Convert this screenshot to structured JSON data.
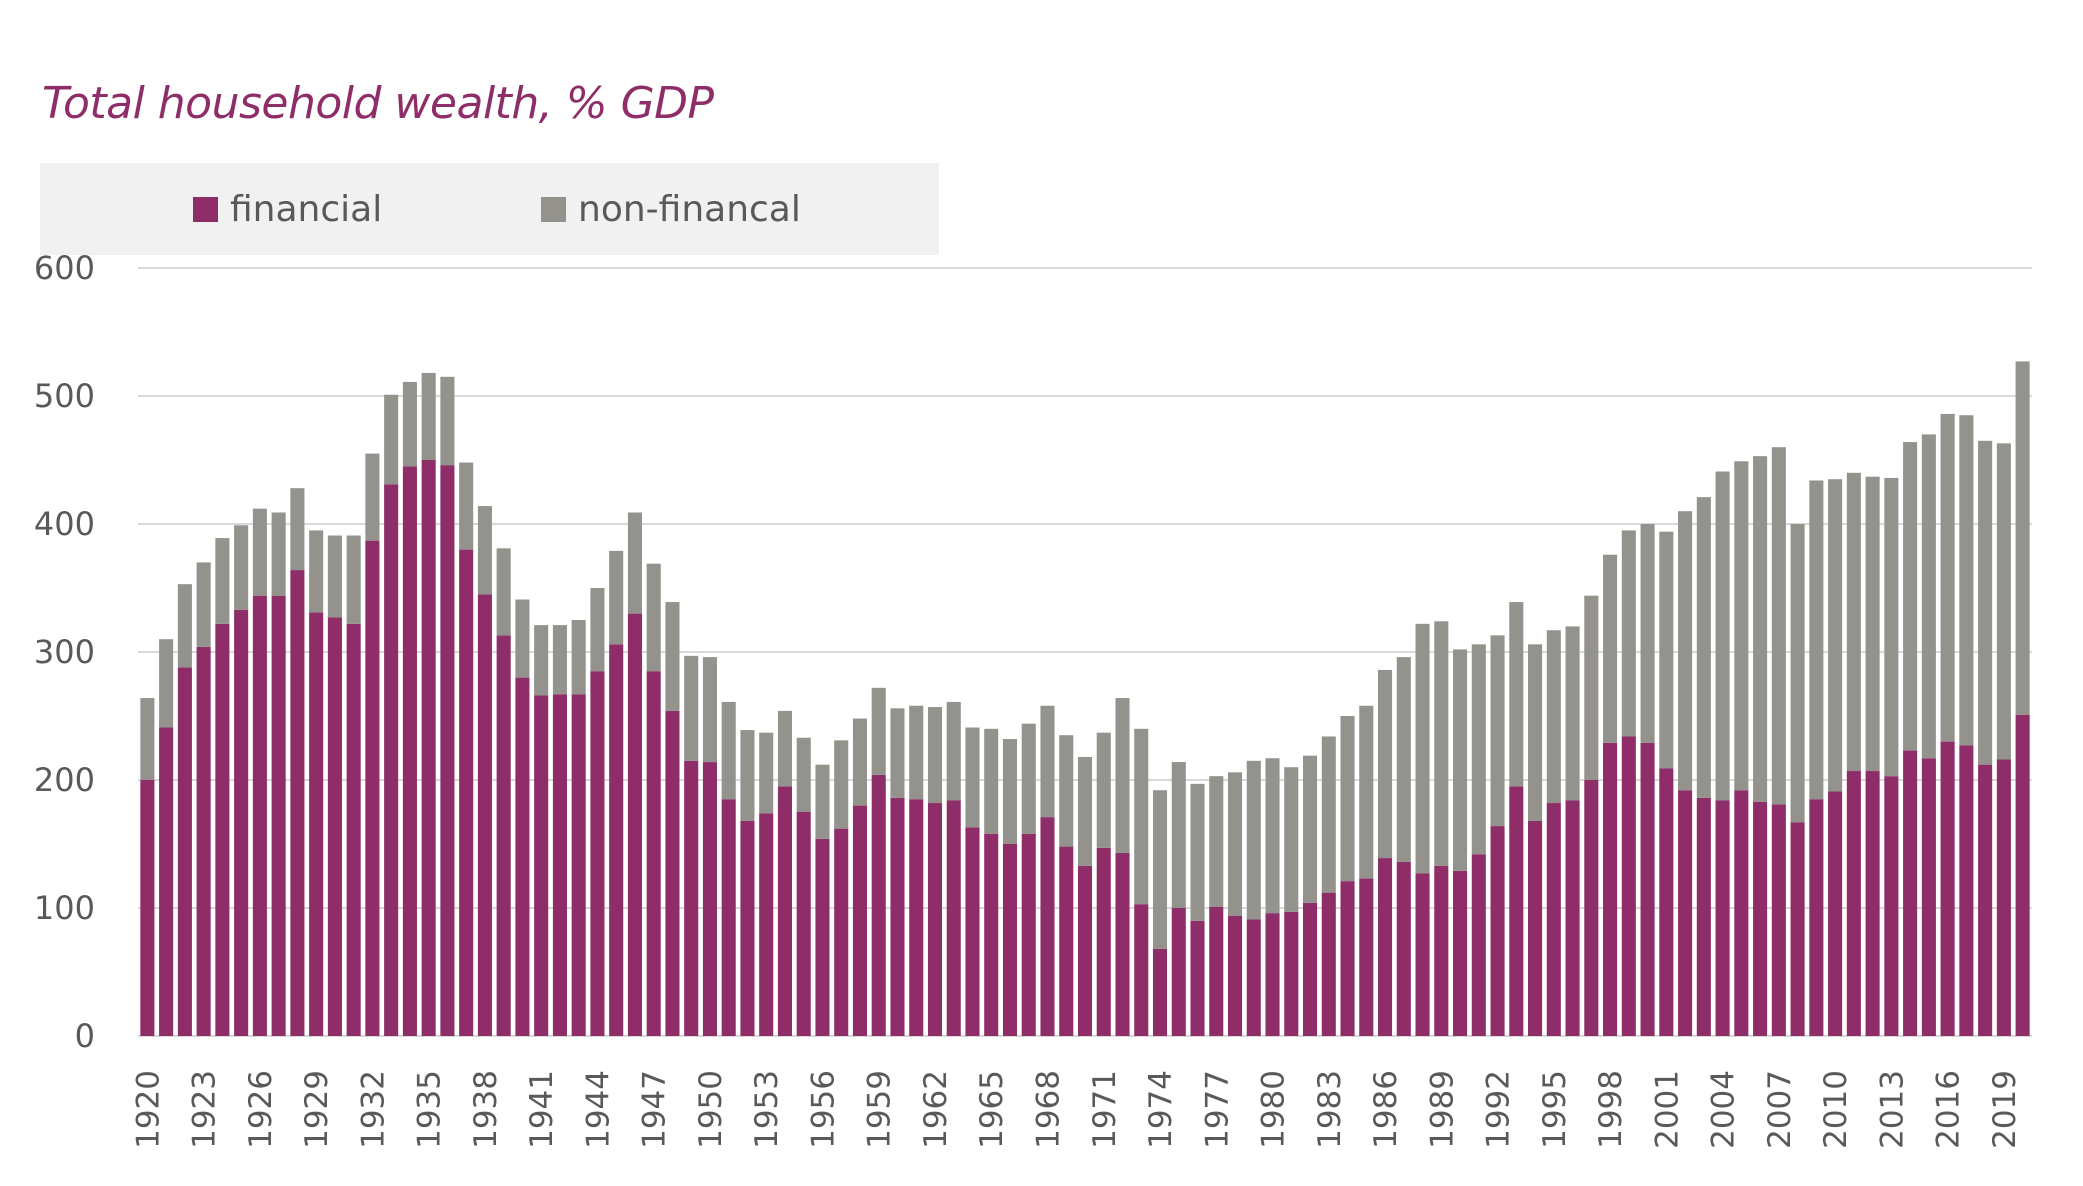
{
  "chart_data": {
    "type": "bar",
    "stacked": true,
    "title": "Total household wealth, % GDP",
    "xlabel": "",
    "ylabel": "",
    "ylim": [
      0,
      600
    ],
    "yticks": [
      0,
      100,
      200,
      300,
      400,
      500,
      600
    ],
    "grid": true,
    "legend_position": "top-left",
    "x_tick_every": 3,
    "categories": [
      "1920",
      "1921",
      "1922",
      "1923",
      "1924",
      "1925",
      "1926",
      "1927",
      "1928",
      "1929",
      "1930",
      "1931",
      "1932",
      "1933",
      "1934",
      "1935",
      "1936",
      "1937",
      "1938",
      "1939",
      "1940",
      "1941",
      "1942",
      "1943",
      "1944",
      "1945",
      "1946",
      "1947",
      "1948",
      "1949",
      "1950",
      "1951",
      "1952",
      "1953",
      "1954",
      "1955",
      "1956",
      "1957",
      "1958",
      "1959",
      "1960",
      "1961",
      "1962",
      "1963",
      "1964",
      "1965",
      "1966",
      "1967",
      "1968",
      "1969",
      "1970",
      "1971",
      "1972",
      "1973",
      "1974",
      "1975",
      "1976",
      "1977",
      "1978",
      "1979",
      "1980",
      "1981",
      "1982",
      "1983",
      "1984",
      "1985",
      "1986",
      "1987",
      "1988",
      "1989",
      "1990",
      "1991",
      "1992",
      "1993",
      "1994",
      "1995",
      "1996",
      "1997",
      "1998",
      "1999",
      "2000",
      "2001",
      "2002",
      "2003",
      "2004",
      "2005",
      "2006",
      "2007",
      "2008",
      "2009",
      "2010",
      "2011",
      "2012",
      "2013",
      "2014",
      "2015",
      "2016",
      "2017",
      "2018",
      "2019",
      "2020"
    ],
    "series": [
      {
        "name": "financial",
        "color": "#8E2D67",
        "values": [
          200,
          241,
          288,
          304,
          322,
          333,
          344,
          344,
          364,
          331,
          327,
          322,
          387,
          431,
          445,
          450,
          446,
          380,
          345,
          313,
          280,
          266,
          267,
          267,
          285,
          306,
          330,
          285,
          254,
          215,
          214,
          185,
          168,
          174,
          195,
          175,
          154,
          162,
          180,
          204,
          186,
          185,
          182,
          184,
          163,
          158,
          150,
          158,
          171,
          148,
          133,
          147,
          143,
          103,
          68,
          100,
          90,
          101,
          94,
          91,
          96,
          97,
          104,
          112,
          121,
          123,
          139,
          136,
          127,
          133,
          129,
          142,
          164,
          195,
          168,
          182,
          184,
          200,
          229,
          234,
          229,
          209,
          192,
          186,
          184,
          192,
          183,
          181,
          167,
          185,
          191,
          207,
          207,
          203,
          223,
          217,
          230,
          227,
          212,
          216,
          251
        ]
      },
      {
        "name": "non-financal",
        "color": "#93928C",
        "values": [
          64,
          69,
          65,
          66,
          67,
          66,
          68,
          65,
          64,
          64,
          64,
          69,
          68,
          70,
          66,
          68,
          69,
          68,
          69,
          68,
          61,
          55,
          54,
          58,
          65,
          73,
          79,
          84,
          85,
          82,
          82,
          76,
          71,
          63,
          59,
          58,
          58,
          69,
          68,
          68,
          70,
          73,
          75,
          77,
          78,
          82,
          82,
          86,
          87,
          87,
          85,
          90,
          121,
          137,
          124,
          114,
          107,
          102,
          112,
          124,
          121,
          113,
          115,
          122,
          129,
          135,
          147,
          160,
          195,
          191,
          173,
          164,
          149,
          144,
          138,
          135,
          136,
          144,
          147,
          161,
          171,
          185,
          218,
          235,
          257,
          257,
          270,
          279,
          233,
          249,
          244,
          233,
          230,
          233,
          241,
          253,
          256,
          258,
          253,
          247,
          276
        ]
      }
    ]
  }
}
